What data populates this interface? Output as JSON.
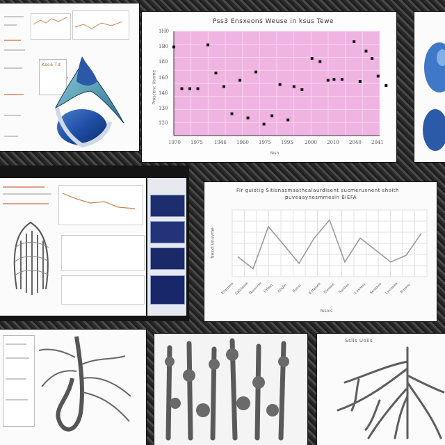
{
  "scatter_panel": {
    "title": "Pss3 Ensxeons Weuse in ksus Tewe",
    "x_axis_label": "Yesn",
    "y_axis_label": "Proscenc Usnme",
    "y_ticks": [
      "1H0",
      "1B0",
      "180",
      "160",
      "146",
      "130",
      "120"
    ],
    "x_ticks": [
      "1970",
      "1975",
      "1946",
      "1960",
      "1975",
      "1995",
      "2000",
      "2010",
      "2040",
      "2041"
    ]
  },
  "line_panel": {
    "title": "Fir guistig Sitisnasmaathcalaurdisent sucmeruxnent shoith",
    "subtitle": "puveaaynesmmesin BIEFA",
    "y_axis_label": "Nexxt Unuvme",
    "x_axis_label": "Yesnis",
    "x_ticks": [
      "Erarmen",
      "Salcinsse",
      "Daserrse",
      "Urban",
      "Alsgle",
      "Rusul",
      "Entaisee",
      "Elemen",
      "Sasiluo",
      "Lusoess",
      "Sesnnee",
      "Lysiouaa",
      "Bossou"
    ]
  },
  "small_panel": {
    "badge": "Ksoe Td"
  },
  "bottom_right_panel": {
    "title": "Ssiis Uoiis"
  },
  "chart_data": [
    {
      "type": "scatter",
      "title": "Pss3 Ensxeons Weuse in ksus Tewe",
      "xlabel": "Yesn",
      "ylabel": "Proscenc Usnme",
      "ylim": [
        0,
        100
      ],
      "grid": true,
      "points": [
        {
          "x": 0.0,
          "y": 85
        },
        {
          "x": 0.04,
          "y": 45
        },
        {
          "x": 0.08,
          "y": 45
        },
        {
          "x": 0.12,
          "y": 45
        },
        {
          "x": 0.17,
          "y": 87
        },
        {
          "x": 0.21,
          "y": 60
        },
        {
          "x": 0.25,
          "y": 47
        },
        {
          "x": 0.29,
          "y": 21
        },
        {
          "x": 0.33,
          "y": 53
        },
        {
          "x": 0.37,
          "y": 17
        },
        {
          "x": 0.41,
          "y": 61
        },
        {
          "x": 0.45,
          "y": 11
        },
        {
          "x": 0.49,
          "y": 19
        },
        {
          "x": 0.53,
          "y": 49
        },
        {
          "x": 0.57,
          "y": 15
        },
        {
          "x": 0.6,
          "y": 47
        },
        {
          "x": 0.64,
          "y": 44
        },
        {
          "x": 0.69,
          "y": 74
        },
        {
          "x": 0.73,
          "y": 71
        },
        {
          "x": 0.77,
          "y": 53
        },
        {
          "x": 0.8,
          "y": 54
        },
        {
          "x": 0.84,
          "y": 54
        },
        {
          "x": 0.9,
          "y": 90
        },
        {
          "x": 0.93,
          "y": 52
        },
        {
          "x": 0.96,
          "y": 81
        },
        {
          "x": 0.99,
          "y": 74
        },
        {
          "x": 1.02,
          "y": 57
        },
        {
          "x": 1.06,
          "y": 48
        }
      ]
    },
    {
      "type": "line",
      "title": "Fir guistig Sitisnasmaathcalaurdisent sucmeruxnent shoith",
      "xlabel": "Yesnis",
      "ylabel": "Nexxt Unuvme",
      "ylim": [
        0,
        100
      ],
      "grid": true,
      "series": [
        {
          "values": [
            30,
            12,
            75,
            48,
            20,
            58,
            85,
            22,
            58,
            40,
            22,
            32,
            65
          ]
        }
      ]
    }
  ]
}
